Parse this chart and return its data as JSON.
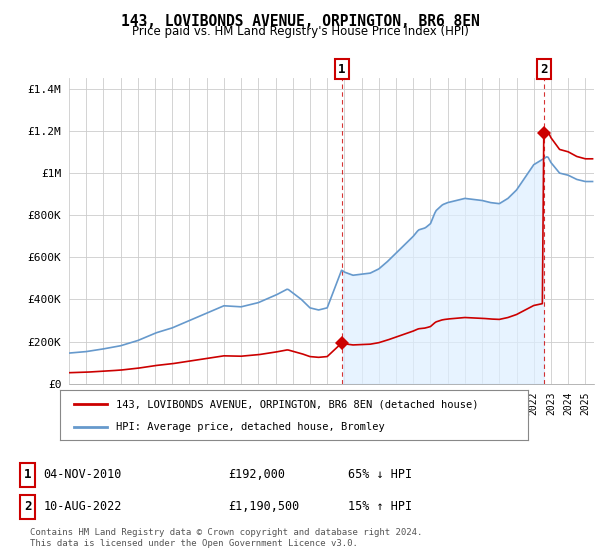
{
  "title": "143, LOVIBONDS AVENUE, ORPINGTON, BR6 8EN",
  "subtitle": "Price paid vs. HM Land Registry's House Price Index (HPI)",
  "hpi_color": "#6699cc",
  "hpi_fill_color": "#ddeeff",
  "sale_color": "#cc0000",
  "background": "#ffffff",
  "grid_color": "#cccccc",
  "ylim": [
    0,
    1450000
  ],
  "yticks": [
    0,
    200000,
    400000,
    600000,
    800000,
    1000000,
    1200000,
    1400000
  ],
  "ytick_labels": [
    "£0",
    "£200K",
    "£400K",
    "£600K",
    "£800K",
    "£1M",
    "£1.2M",
    "£1.4M"
  ],
  "sale1_x": 2010.84,
  "sale1_y": 192000,
  "sale2_x": 2022.61,
  "sale2_y": 1190500,
  "legend_sale": "143, LOVIBONDS AVENUE, ORPINGTON, BR6 8EN (detached house)",
  "legend_hpi": "HPI: Average price, detached house, Bromley",
  "footer": "Contains HM Land Registry data © Crown copyright and database right 2024.\nThis data is licensed under the Open Government Licence v3.0.",
  "xlim_start": 1995.0,
  "xlim_end": 2025.5
}
